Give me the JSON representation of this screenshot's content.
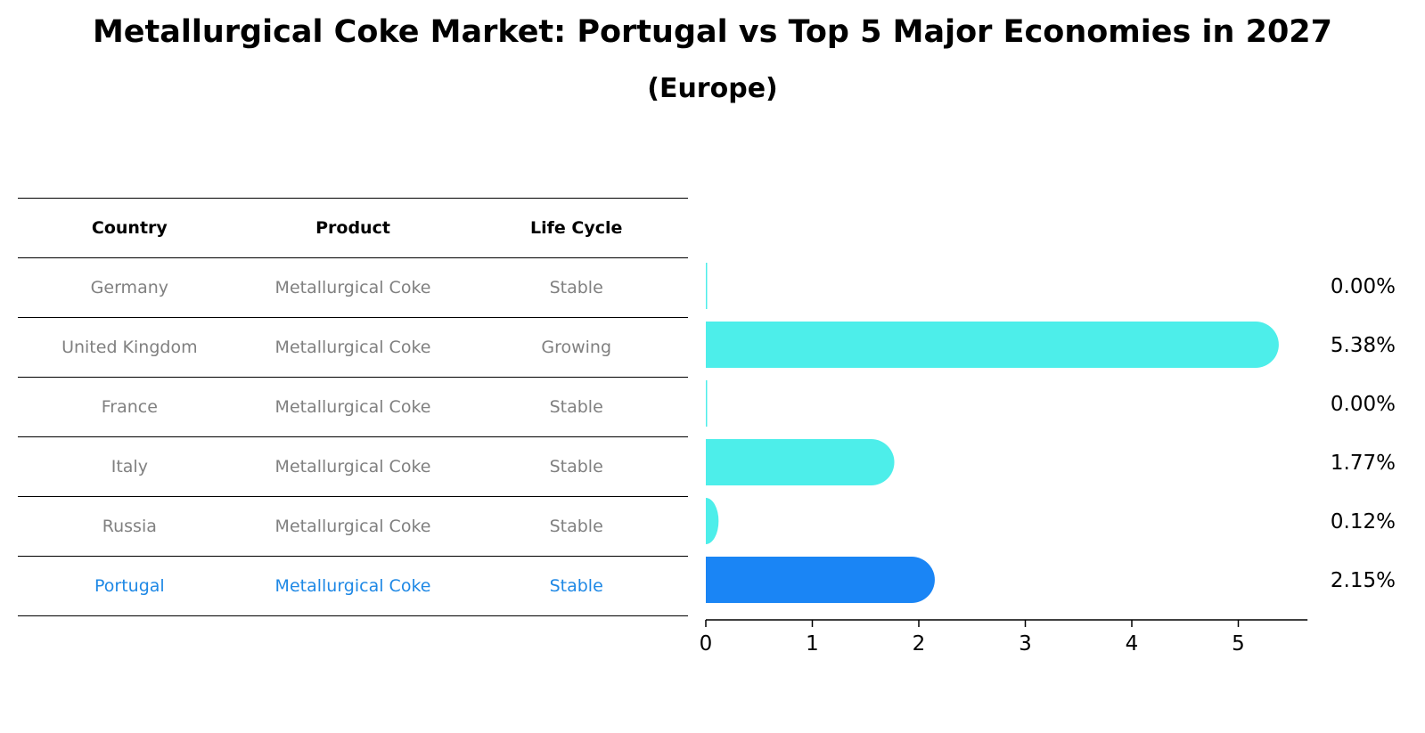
{
  "title": "Metallurgical Coke Market: Portugal vs Top 5 Major Economies in 2027",
  "subtitle": "(Europe)",
  "table": {
    "headers": [
      "Country",
      "Product",
      "Life Cycle"
    ],
    "rows": [
      [
        "Germany",
        "Metallurgical Coke",
        "Stable"
      ],
      [
        "United Kingdom",
        "Metallurgical Coke",
        "Growing"
      ],
      [
        "France",
        "Metallurgical Coke",
        "Stable"
      ],
      [
        "Italy",
        "Metallurgical Coke",
        "Stable"
      ],
      [
        "Russia",
        "Metallurgical Coke",
        "Stable"
      ],
      [
        "Portugal",
        "Metallurgical Coke",
        "Stable"
      ]
    ],
    "highlight_row": 5
  },
  "colors": {
    "bar": "#4deeea",
    "highlight_bar": "#1a85f5",
    "highlight_text": "#1e88e5"
  },
  "chart_data": {
    "type": "bar",
    "orientation": "horizontal",
    "categories": [
      "Germany",
      "United Kingdom",
      "France",
      "Italy",
      "Russia",
      "Portugal"
    ],
    "values": [
      0.0,
      5.38,
      0.0,
      1.77,
      0.12,
      2.15
    ],
    "value_labels": [
      "0.00%",
      "5.38%",
      "0.00%",
      "1.77%",
      "0.12%",
      "2.15%"
    ],
    "xticks": [
      "0",
      "1",
      "2",
      "3",
      "4",
      "5"
    ],
    "xlim": [
      0,
      5.65
    ],
    "grid": false,
    "highlight": "Portugal"
  }
}
